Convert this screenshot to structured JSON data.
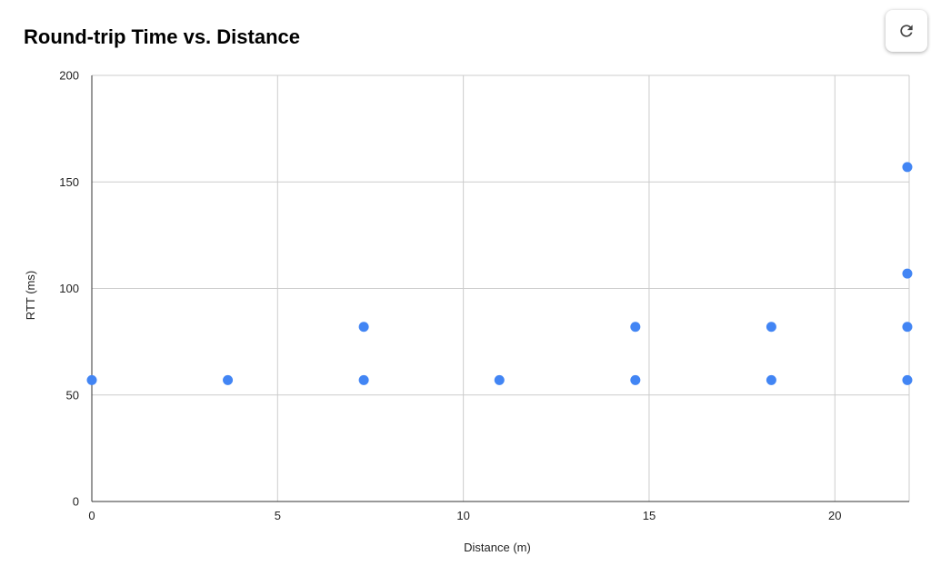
{
  "chart_data": {
    "type": "scatter",
    "title": "Round-trip Time vs. Distance",
    "xlabel": "Distance (m)",
    "ylabel": "RTT (ms)",
    "xlim": [
      0,
      22
    ],
    "ylim": [
      0,
      200
    ],
    "xticks": [
      0,
      5,
      10,
      15,
      20
    ],
    "yticks": [
      0,
      50,
      100,
      150,
      200
    ],
    "grid": true,
    "legend": "none",
    "color": "#4285f4",
    "points": [
      {
        "x": 0,
        "y": 57
      },
      {
        "x": 3.66,
        "y": 57
      },
      {
        "x": 7.32,
        "y": 57
      },
      {
        "x": 7.32,
        "y": 82
      },
      {
        "x": 10.97,
        "y": 57
      },
      {
        "x": 14.63,
        "y": 57
      },
      {
        "x": 14.63,
        "y": 82
      },
      {
        "x": 18.29,
        "y": 57
      },
      {
        "x": 18.29,
        "y": 82
      },
      {
        "x": 21.95,
        "y": 57
      },
      {
        "x": 21.95,
        "y": 82
      },
      {
        "x": 21.95,
        "y": 107
      },
      {
        "x": 21.95,
        "y": 157
      }
    ]
  },
  "toolbar": {
    "refresh_icon": "refresh-icon"
  }
}
